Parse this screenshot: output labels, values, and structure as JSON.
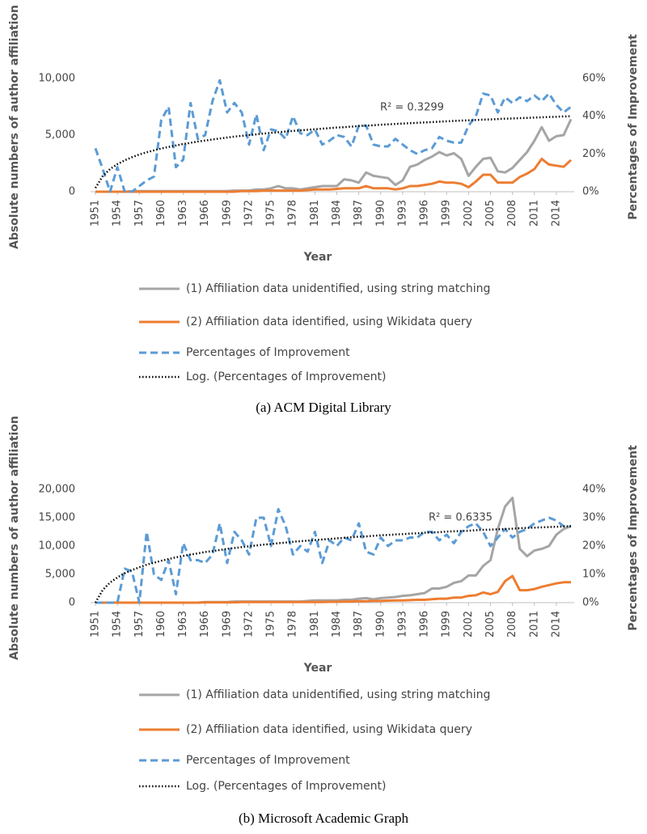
{
  "chart_data": [
    {
      "type": "line",
      "caption": "(a) ACM Digital Library",
      "y_label": "Absolute numbers of author affiliation",
      "y2_label": "Percentages of Improvement",
      "x_label": "Year",
      "annotation": "R² = 0.3299",
      "x": [
        1951,
        1952,
        1953,
        1954,
        1955,
        1956,
        1957,
        1958,
        1959,
        1960,
        1961,
        1962,
        1963,
        1964,
        1965,
        1966,
        1967,
        1968,
        1969,
        1970,
        1971,
        1972,
        1973,
        1974,
        1975,
        1976,
        1977,
        1978,
        1979,
        1980,
        1981,
        1982,
        1983,
        1984,
        1985,
        1986,
        1987,
        1988,
        1989,
        1990,
        1991,
        1992,
        1993,
        1994,
        1995,
        1996,
        1997,
        1998,
        1999,
        2000,
        2001,
        2002,
        2003,
        2004,
        2005,
        2006,
        2007,
        2008,
        2009,
        2010,
        2011,
        2012,
        2013,
        2014,
        2015,
        2016
      ],
      "xlim": [
        1951,
        2016
      ],
      "xticks": [
        1951,
        1954,
        1957,
        1960,
        1963,
        1966,
        1969,
        1972,
        1975,
        1978,
        1981,
        1984,
        1987,
        1990,
        1993,
        1996,
        1999,
        2002,
        2005,
        2008,
        2011,
        2014
      ],
      "ylim": [
        0,
        10000
      ],
      "yticks": [
        0,
        {
          "value": 5000,
          "label": "5,000"
        },
        {
          "value": 10000,
          "label": "10,000"
        }
      ],
      "y2lim": [
        0,
        60
      ],
      "y2ticks": [
        {
          "value": 0,
          "label": "0%"
        },
        {
          "value": 20,
          "label": "20%"
        },
        {
          "value": 40,
          "label": "40%"
        },
        {
          "value": 60,
          "label": "60%"
        }
      ],
      "grid": false,
      "series": [
        {
          "name": "(1) Affiliation data unidentified, using string matching",
          "color": "#a5a5a5",
          "style": "solid",
          "values": [
            0,
            0,
            0,
            0,
            0,
            50,
            50,
            50,
            50,
            50,
            50,
            50,
            50,
            50,
            50,
            50,
            50,
            50,
            50,
            100,
            100,
            100,
            200,
            200,
            300,
            500,
            300,
            300,
            200,
            300,
            400,
            500,
            500,
            500,
            1100,
            1000,
            800,
            1700,
            1400,
            1300,
            1200,
            600,
            1000,
            2200,
            2400,
            2800,
            3100,
            3500,
            3200,
            3400,
            2900,
            1400,
            2200,
            2900,
            3000,
            1800,
            1700,
            2100,
            2800,
            3500,
            4500,
            5700,
            4500,
            4900,
            5000,
            6400
          ]
        },
        {
          "name": "(2) Affiliation data identified, using Wikidata query",
          "color": "#ed7d31",
          "style": "solid",
          "values": [
            0,
            0,
            0,
            0,
            0,
            0,
            0,
            0,
            0,
            0,
            0,
            0,
            0,
            0,
            0,
            0,
            0,
            0,
            0,
            0,
            50,
            50,
            50,
            100,
            100,
            100,
            100,
            100,
            100,
            150,
            200,
            200,
            200,
            250,
            300,
            300,
            300,
            500,
            300,
            300,
            300,
            200,
            300,
            500,
            500,
            600,
            700,
            900,
            800,
            800,
            700,
            400,
            900,
            1500,
            1500,
            800,
            800,
            800,
            1300,
            1600,
            2000,
            2900,
            2400,
            2300,
            2200,
            2800
          ]
        },
        {
          "name": "Percentages of Improvement",
          "color": "#5b9bd5",
          "style": "dashed",
          "axis": "y2",
          "values": [
            23,
            12,
            0,
            13,
            0,
            0,
            3,
            6,
            8,
            38,
            45,
            13,
            17,
            47,
            28,
            30,
            48,
            59,
            42,
            47,
            42,
            25,
            41,
            22,
            33,
            32,
            28,
            40,
            31,
            30,
            33,
            25,
            27,
            30,
            29,
            24,
            35,
            35,
            25,
            24,
            24,
            28,
            25,
            22,
            20,
            22,
            23,
            29,
            27,
            26,
            26,
            35,
            40,
            52,
            51,
            42,
            50,
            47,
            50,
            48,
            51,
            48,
            52,
            46,
            42,
            45
          ]
        },
        {
          "name": "Log. (Percentages of Improvement)",
          "color": "#000000",
          "style": "dotted",
          "axis": "y2",
          "values": [
            2.0,
            8.3,
            12.0,
            14.6,
            16.6,
            18.3,
            19.7,
            20.9,
            21.9,
            22.9,
            23.7,
            24.5,
            25.3,
            25.9,
            26.6,
            27.1,
            27.7,
            28.2,
            28.7,
            29.2,
            29.6,
            30.0,
            30.4,
            30.8,
            31.2,
            31.5,
            31.9,
            32.2,
            32.5,
            32.8,
            33.1,
            33.4,
            33.7,
            34.0,
            34.2,
            34.5,
            34.8,
            35.0,
            35.2,
            35.5,
            35.7,
            35.9,
            36.1,
            36.3,
            36.5,
            36.7,
            36.9,
            37.1,
            37.3,
            37.5,
            37.7,
            37.8,
            38.0,
            38.2,
            38.3,
            38.5,
            38.7,
            38.8,
            39.0,
            39.1,
            39.3,
            39.4,
            39.6,
            39.7,
            39.9,
            40.0
          ]
        }
      ]
    },
    {
      "type": "line",
      "caption": "(b) Microsoft Academic Graph",
      "y_label": "Absolute numbers of author affiliation",
      "y2_label": "Percentages of Improvement",
      "x_label": "Year",
      "annotation": "R² = 0.6335",
      "x": [
        1951,
        1952,
        1953,
        1954,
        1955,
        1956,
        1957,
        1958,
        1959,
        1960,
        1961,
        1962,
        1963,
        1964,
        1965,
        1966,
        1967,
        1968,
        1969,
        1970,
        1971,
        1972,
        1973,
        1974,
        1975,
        1976,
        1977,
        1978,
        1979,
        1980,
        1981,
        1982,
        1983,
        1984,
        1985,
        1986,
        1987,
        1988,
        1989,
        1990,
        1991,
        1992,
        1993,
        1994,
        1995,
        1996,
        1997,
        1998,
        1999,
        2000,
        2001,
        2002,
        2003,
        2004,
        2005,
        2006,
        2007,
        2008,
        2009,
        2010,
        2011,
        2012,
        2013,
        2014,
        2015,
        2016
      ],
      "xlim": [
        1951,
        2016
      ],
      "xticks": [
        1951,
        1954,
        1957,
        1960,
        1963,
        1966,
        1969,
        1972,
        1975,
        1978,
        1981,
        1984,
        1987,
        1990,
        1993,
        1996,
        1999,
        2002,
        2005,
        2008,
        2011,
        2014
      ],
      "ylim": [
        0,
        20000
      ],
      "yticks": [
        0,
        {
          "value": 5000,
          "label": "5,000"
        },
        {
          "value": 10000,
          "label": "10,000"
        },
        {
          "value": 15000,
          "label": "15,000"
        },
        {
          "value": 20000,
          "label": "20,000"
        }
      ],
      "y2lim": [
        0,
        40
      ],
      "y2ticks": [
        {
          "value": 0,
          "label": "0%"
        },
        {
          "value": 10,
          "label": "10%"
        },
        {
          "value": 20,
          "label": "20%"
        },
        {
          "value": 30,
          "label": "30%"
        },
        {
          "value": 40,
          "label": "40%"
        }
      ],
      "grid": false,
      "series": [
        {
          "name": "(1) Affiliation data unidentified, using string matching",
          "color": "#a5a5a5",
          "style": "solid",
          "values": [
            0,
            0,
            0,
            0,
            0,
            0,
            0,
            0,
            0,
            0,
            0,
            0,
            0,
            0,
            0,
            100,
            100,
            100,
            100,
            200,
            200,
            200,
            200,
            200,
            200,
            200,
            200,
            200,
            200,
            300,
            400,
            400,
            400,
            400,
            500,
            500,
            700,
            800,
            600,
            800,
            900,
            1000,
            1200,
            1300,
            1500,
            1700,
            2500,
            2500,
            2800,
            3500,
            3800,
            4800,
            4800,
            6500,
            7500,
            13000,
            17000,
            18500,
            9500,
            8200,
            9200,
            9500,
            10000,
            12000,
            13000,
            13500
          ]
        },
        {
          "name": "(2) Affiliation data identified, using Wikidata query",
          "color": "#ed7d31",
          "style": "solid",
          "values": [
            0,
            0,
            0,
            0,
            0,
            0,
            0,
            0,
            0,
            0,
            0,
            0,
            0,
            0,
            0,
            50,
            50,
            50,
            50,
            50,
            100,
            100,
            100,
            100,
            100,
            100,
            100,
            100,
            100,
            100,
            100,
            100,
            150,
            150,
            200,
            200,
            250,
            250,
            300,
            300,
            350,
            400,
            400,
            450,
            500,
            500,
            600,
            700,
            700,
            900,
            900,
            1200,
            1300,
            1800,
            1500,
            1900,
            3800,
            4700,
            2200,
            2200,
            2400,
            2800,
            3100,
            3400,
            3600,
            3600
          ]
        },
        {
          "name": "Percentages of Improvement",
          "color": "#5b9bd5",
          "style": "dashed",
          "axis": "y2",
          "values": [
            0,
            0,
            0,
            0,
            12,
            11,
            0,
            25,
            10,
            8,
            15,
            3,
            21,
            15,
            15,
            14,
            17,
            28,
            14,
            25,
            22,
            17,
            30,
            30,
            20,
            33,
            27,
            17,
            20,
            18,
            25,
            14,
            22,
            20,
            23,
            22,
            28,
            18,
            17,
            23,
            20,
            22,
            22,
            23,
            23,
            25,
            25,
            22,
            24,
            21,
            25,
            27,
            28,
            25,
            20,
            23,
            26,
            23,
            25,
            26,
            28,
            29,
            30,
            29,
            27,
            27
          ]
        },
        {
          "name": "Log. (Percentages of Improvement)",
          "color": "#000000",
          "style": "dotted",
          "axis": "y2",
          "values": [
            0,
            4.5,
            7.1,
            8.9,
            10.4,
            11.5,
            12.5,
            13.4,
            14.1,
            14.8,
            15.4,
            16.0,
            16.5,
            17.0,
            17.4,
            17.9,
            18.2,
            18.6,
            19.0,
            19.3,
            19.6,
            19.9,
            20.2,
            20.5,
            20.7,
            21.0,
            21.2,
            21.5,
            21.7,
            21.9,
            22.1,
            22.3,
            22.5,
            22.7,
            22.9,
            23.1,
            23.3,
            23.4,
            23.6,
            23.8,
            23.9,
            24.1,
            24.2,
            24.4,
            24.5,
            24.7,
            24.8,
            24.9,
            25.1,
            25.2,
            25.3,
            25.4,
            25.6,
            25.7,
            25.8,
            25.9,
            26.0,
            26.1,
            26.3,
            26.4,
            26.5,
            26.6,
            26.7,
            26.8,
            26.9,
            27.0
          ]
        }
      ]
    }
  ]
}
